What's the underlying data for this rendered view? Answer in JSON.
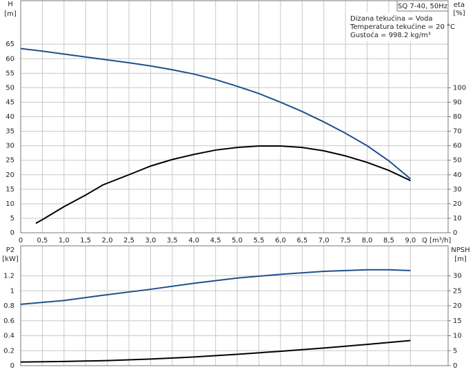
{
  "chart_data": [
    {
      "type": "line",
      "title": "SQ 7-40, 50Hz",
      "annotations": [
        "Dizana tekućina = Voda",
        "Temperatura tekućine = 20 °C",
        "Gustoća = 998.2 kg/m³"
      ],
      "y_label": "H",
      "y_unit": "[m]",
      "y2_label": "eta",
      "y2_unit": "[%]",
      "x_label": "Q [m³/h]",
      "xlim": [
        0,
        9.87
      ],
      "xticks": [
        0,
        {
          "value": 0.5,
          "label": "0,5"
        },
        {
          "value": 1,
          "label": "1,0"
        },
        {
          "value": 1.5,
          "label": "1,5"
        },
        {
          "value": 2,
          "label": "2,0"
        },
        {
          "value": 2.5,
          "label": "2,5"
        },
        {
          "value": 3,
          "label": "3,0"
        },
        {
          "value": 3.5,
          "label": "3,5"
        },
        {
          "value": 4,
          "label": "4,0"
        },
        {
          "value": 4.5,
          "label": "4,5"
        },
        {
          "value": 5,
          "label": "5,0"
        },
        {
          "value": 5.5,
          "label": "5,5"
        },
        {
          "value": 6,
          "label": "6,0"
        },
        {
          "value": 6.5,
          "label": "6,5"
        },
        {
          "value": 7,
          "label": "7,0"
        },
        {
          "value": 7.5,
          "label": "7,5"
        },
        {
          "value": 8,
          "label": "8,0"
        },
        {
          "value": 8.5,
          "label": "8,5"
        },
        {
          "value": 9,
          "label": "9,0"
        }
      ],
      "ylim": [
        0,
        80
      ],
      "yticks": [
        0,
        5,
        10,
        15,
        20,
        25,
        30,
        35,
        40,
        45,
        50,
        55,
        60,
        65
      ],
      "y2lim": [
        0,
        160
      ],
      "y2ticks": [
        0,
        10,
        20,
        30,
        40,
        50,
        60,
        70,
        80,
        90,
        100
      ],
      "grid": true,
      "series": [
        {
          "color": "#1f4e8c",
          "x": [
            0,
            0.5,
            1,
            1.5,
            1.9,
            2.5,
            3,
            3.5,
            4,
            4.5,
            5,
            5.5,
            6,
            6.5,
            7,
            7.5,
            8,
            8.5,
            9
          ],
          "values": [
            63.5,
            62.6,
            61.6,
            60.6,
            59.8,
            58.6,
            57.5,
            56.2,
            54.7,
            52.8,
            50.5,
            48,
            45,
            41.8,
            38.2,
            34.3,
            30,
            24.8,
            18.6
          ]
        },
        {
          "color": "#000000",
          "axis": "y2",
          "x": [
            0.35,
            0.5,
            1,
            1.5,
            1.9,
            2.5,
            3,
            3.5,
            4,
            4.5,
            5,
            5.5,
            6,
            6.5,
            7,
            7.5,
            8,
            8.5,
            9
          ],
          "values": [
            6.5,
            9,
            18,
            26,
            33,
            40,
            46,
            50.5,
            54,
            57,
            58.8,
            59.8,
            59.8,
            58.8,
            56.5,
            53,
            48.5,
            43,
            36
          ]
        }
      ]
    },
    {
      "type": "line",
      "y_label": "P2",
      "y_unit": "[kW]",
      "y2_label": "NPSH",
      "y2_unit": "[m]",
      "xlim": [
        0,
        9.87
      ],
      "xticks": [
        0,
        0.5,
        1,
        1.5,
        2,
        2.5,
        3,
        3.5,
        4,
        4.5,
        5,
        5.5,
        6,
        6.5,
        7,
        7.5,
        8,
        8.5,
        9
      ],
      "ylim": [
        0,
        1.6
      ],
      "yticks": [
        0,
        0.2,
        0.4,
        0.6,
        0.8,
        1,
        1.2
      ],
      "y2lim": [
        0,
        40
      ],
      "y2ticks": [
        0,
        5,
        10,
        15,
        20,
        25,
        30
      ],
      "grid": true,
      "series": [
        {
          "color": "#1f4e8c",
          "x": [
            0,
            1,
            1.9,
            3,
            4,
            5,
            6,
            7,
            8,
            8.5,
            9
          ],
          "values": [
            0.82,
            0.87,
            0.94,
            1.02,
            1.1,
            1.17,
            1.22,
            1.26,
            1.28,
            1.28,
            1.27
          ]
        },
        {
          "color": "#000000",
          "axis": "y2",
          "x": [
            0,
            1,
            2,
            3,
            4,
            5,
            6,
            7,
            8,
            9
          ],
          "values": [
            1.2,
            1.4,
            1.7,
            2.2,
            2.9,
            3.8,
            4.8,
            5.9,
            7.1,
            8.4
          ]
        }
      ]
    }
  ]
}
